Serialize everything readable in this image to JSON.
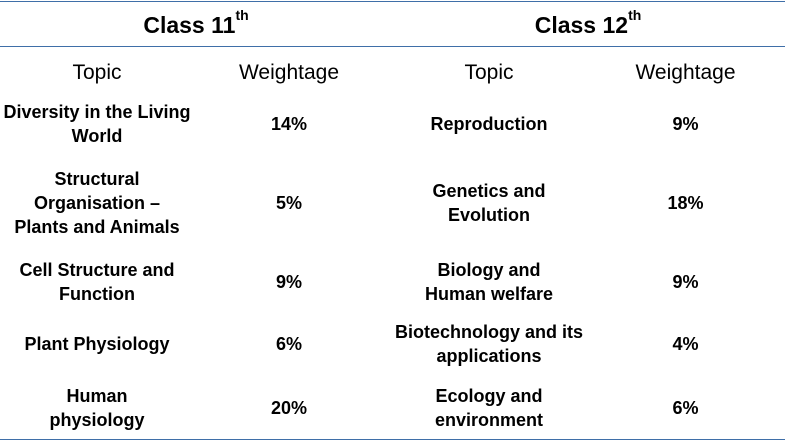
{
  "class11": {
    "title": "Class 11",
    "sup": "th",
    "topic_header": "Topic",
    "weight_header": "Weightage",
    "rows": [
      {
        "topic": "Diversity in the Living World",
        "weight": "14%"
      },
      {
        "topic": "Structural Organisation – Plants and Animals",
        "weight": "5%"
      },
      {
        "topic": "Cell Structure and Function",
        "weight": "9%"
      },
      {
        "topic": "Plant Physiology",
        "weight": "6%"
      },
      {
        "topic": "Human physiology",
        "weight": "20%"
      }
    ]
  },
  "class12": {
    "title": "Class 12",
    "sup": "th",
    "topic_header": "Topic",
    "weight_header": "Weightage",
    "rows": [
      {
        "topic": "Reproduction",
        "weight": "9%"
      },
      {
        "topic": "Genetics and Evolution",
        "weight": "18%"
      },
      {
        "topic": "Biology and Human welfare",
        "weight": "9%"
      },
      {
        "topic": "Biotechnology and its applications",
        "weight": "4%"
      },
      {
        "topic": "Ecology and environment",
        "weight": "6%"
      }
    ]
  },
  "colors": {
    "rule": "#3f6fa8",
    "text": "#000000",
    "background": "#ffffff"
  }
}
